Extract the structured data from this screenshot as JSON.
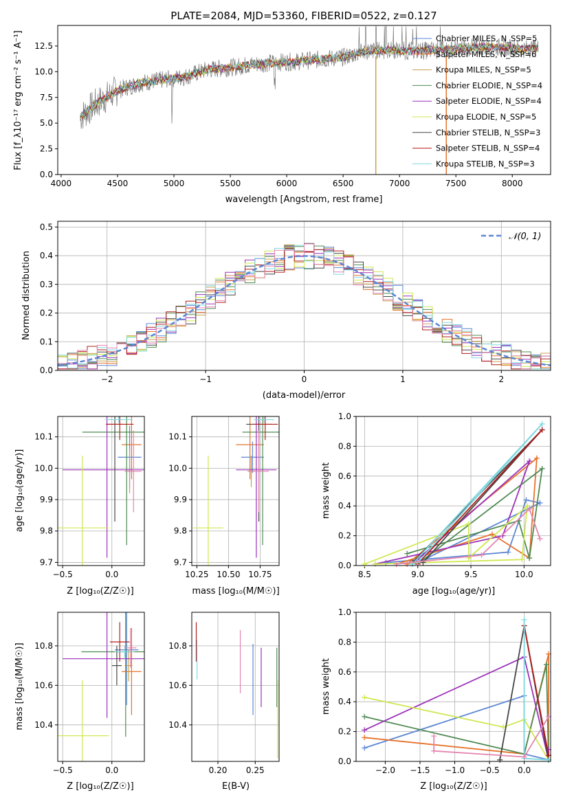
{
  "colors": {
    "chabrier_miles": "#5b86d4",
    "salpeter_miles": "#e6722a",
    "kroupa_miles": "#c8a050",
    "chabrier_elodie": "#4f8a52",
    "salpeter_elodie": "#9b30b8",
    "kroupa_elodie": "#cfe84f",
    "chabrier_stelib": "#454545",
    "salpeter_stelib": "#b31b1b",
    "kroupa_stelib": "#7fd8e0",
    "pink": "#e484b0",
    "gray": "#777777",
    "normal": "#5b86d4",
    "grid": "#b0b0b0"
  },
  "chart_data": [
    {
      "id": "spectrum",
      "type": "line",
      "title": "PLATE=2084, MJD=53360, FIBERID=0522, z=0.127",
      "xlabel": "wavelength [Angstrom, rest frame]",
      "ylabel": "Flux [f_λ10⁻¹⁷ erg cm⁻² s⁻¹ A⁻¹]",
      "xlim": [
        3970,
        8340
      ],
      "ylim": [
        0,
        14.5
      ],
      "xticks": [
        4000,
        4500,
        5000,
        5500,
        6000,
        6500,
        7000,
        7500,
        8000
      ],
      "yticks": [
        0.0,
        2.5,
        5.0,
        7.5,
        10.0,
        12.5
      ],
      "continuum": [
        [
          4170,
          5.6
        ],
        [
          4300,
          6.8
        ],
        [
          4500,
          8.2
        ],
        [
          4700,
          8.9
        ],
        [
          4900,
          9.2
        ],
        [
          5100,
          9.5
        ],
        [
          5300,
          10.2
        ],
        [
          5500,
          10.4
        ],
        [
          5700,
          10.7
        ],
        [
          5900,
          10.9
        ],
        [
          6100,
          11.0
        ],
        [
          6300,
          11.2
        ],
        [
          6500,
          11.4
        ],
        [
          6700,
          12.0
        ],
        [
          6900,
          12.1
        ],
        [
          7100,
          12.0
        ],
        [
          7300,
          12.1
        ],
        [
          7500,
          12.2
        ],
        [
          7700,
          12.4
        ],
        [
          7900,
          12.4
        ],
        [
          8100,
          12.2
        ],
        [
          8200,
          12.3
        ]
      ],
      "legend": [
        "Chabrier MILES, N_SSP=5",
        "Salpeter MILES, N_SSP=6",
        "Kroupa MILES, N_SSP=5",
        "Chabrier ELODIE, N_SSP=4",
        "Salpeter ELODIE, N_SSP=4",
        "Kroupa ELODIE, N_SSP=5",
        "Chabrier STELIB, N_SSP=3",
        "Salpeter STELIB, N_SSP=4",
        "Kroupa STELIB, N_SSP=3"
      ],
      "legend_placement": "right",
      "grid": false
    },
    {
      "id": "residuals",
      "type": "line",
      "xlabel": "(data-model)/error",
      "ylabel": "Normed distribution",
      "xlim": [
        -2.5,
        2.5
      ],
      "ylim": [
        0,
        0.52
      ],
      "xticks": [
        -2,
        -1,
        0,
        1,
        2
      ],
      "yticks": [
        0.0,
        0.1,
        0.2,
        0.3,
        0.4,
        0.5
      ],
      "legend": [
        "𝒩(0, 1)"
      ],
      "legend_placement": "top-right",
      "grid": true
    },
    {
      "id": "age-vs-Z",
      "type": "scatter",
      "xlabel": "Z [log₁₀(Z/Z☉)]",
      "ylabel": "age  [log₁₀(age/yr)]",
      "xlim": [
        -0.55,
        0.33
      ],
      "ylim": [
        9.69,
        10.165
      ],
      "xticks": [
        -0.5,
        0.0
      ],
      "yticks": [
        9.7,
        9.8,
        9.9,
        10.0,
        10.1
      ],
      "grid": true,
      "points": [
        {
          "c": "chabrier_miles",
          "x": 0.18,
          "y": 10.035,
          "ex": 0.12,
          "ey": 0.1
        },
        {
          "c": "salpeter_miles",
          "x": 0.2,
          "y": 10.075,
          "ex": 0.1,
          "ey": 0.11
        },
        {
          "c": "kroupa_miles",
          "x": 0.18,
          "y": 9.99,
          "ex": 0.05,
          "ey": 0.07
        },
        {
          "c": "chabrier_elodie",
          "x": 0.15,
          "y": 10.115,
          "ex": 0.45,
          "ey": 0.36
        },
        {
          "c": "salpeter_elodie",
          "x": -0.05,
          "y": 9.995,
          "ex": 0.45,
          "ey": 0.28
        },
        {
          "c": "kroupa_elodie",
          "x": -0.3,
          "y": 9.81,
          "ex": 0.27,
          "ey": 0.23
        },
        {
          "c": "chabrier_stelib",
          "x": 0.03,
          "y": 10.14,
          "ex": 0.08,
          "ey": 0.31
        },
        {
          "c": "salpeter_stelib",
          "x": 0.08,
          "y": 10.14,
          "ex": 0.14,
          "ey": 0.05
        },
        {
          "c": "kroupa_stelib",
          "x": 0.07,
          "y": 10.155,
          "ex": 0.14,
          "ey": 0.01
        },
        {
          "c": "pink",
          "x": 0.22,
          "y": 9.99,
          "ex": 0.08,
          "ey": 0.13
        }
      ]
    },
    {
      "id": "age-vs-mass",
      "type": "scatter",
      "xlabel": "mass [log₁₀(M/M☉)]",
      "ylabel": "",
      "xlim": [
        10.21,
        10.9
      ],
      "ylim": [
        9.69,
        10.165
      ],
      "xticks": [
        10.25,
        10.5,
        10.75
      ],
      "yticks": [
        9.7,
        9.8,
        9.9,
        10.0,
        10.1
      ],
      "grid": true,
      "points": [
        {
          "c": "chabrier_miles",
          "x": 10.69,
          "y": 10.035,
          "ex": 0.09,
          "ey": 0.05
        },
        {
          "c": "salpeter_miles",
          "x": 10.67,
          "y": 10.075,
          "ex": 0.11,
          "ey": 0.11
        },
        {
          "c": "kroupa_miles",
          "x": 10.68,
          "y": 9.99,
          "ex": 0.03,
          "ey": 0.05
        },
        {
          "c": "chabrier_elodie",
          "x": 10.77,
          "y": 10.115,
          "ex": 0.16,
          "ey": 0.36
        },
        {
          "c": "salpeter_elodie",
          "x": 10.72,
          "y": 9.995,
          "ex": 0.16,
          "ey": 0.28
        },
        {
          "c": "kroupa_elodie",
          "x": 10.34,
          "y": 9.81,
          "ex": 0.12,
          "ey": 0.23
        },
        {
          "c": "chabrier_stelib",
          "x": 10.74,
          "y": 10.14,
          "ex": 0.1,
          "ey": 0.31
        },
        {
          "c": "salpeter_stelib",
          "x": 10.79,
          "y": 10.14,
          "ex": 0.1,
          "ey": 0.05
        },
        {
          "c": "kroupa_stelib",
          "x": 10.78,
          "y": 10.155,
          "ex": 0.08,
          "ey": 0.01
        },
        {
          "c": "pink",
          "x": 10.74,
          "y": 9.99,
          "ex": 0.08,
          "ey": 0.13
        }
      ]
    },
    {
      "id": "weight-vs-age",
      "type": "line",
      "xlabel": "age  [log₁₀(age/yr)]",
      "ylabel": "mass weight",
      "xlim": [
        8.42,
        10.25
      ],
      "ylim": [
        0,
        1.0
      ],
      "xticks": [
        8.5,
        9.0,
        9.5,
        10.0
      ],
      "yticks": [
        0.0,
        0.2,
        0.4,
        0.6,
        0.8,
        1.0
      ],
      "grid": true,
      "series": [
        {
          "c": "chabrier_miles",
          "x": [
            8.7,
            9.85,
            10.02,
            10.15,
            9.0
          ],
          "y": [
            0.02,
            0.09,
            0.44,
            0.42,
            0.02
          ]
        },
        {
          "c": "salpeter_miles",
          "x": [
            8.8,
            9.7,
            10.05,
            10.12,
            8.9
          ],
          "y": [
            0.01,
            0.21,
            0.05,
            0.72,
            0.01
          ]
        },
        {
          "c": "chabrier_elodie",
          "x": [
            8.9,
            9.95,
            10.05,
            10.17,
            9.0
          ],
          "y": [
            0.08,
            0.3,
            0.05,
            0.65,
            0.01
          ]
        },
        {
          "c": "salpeter_elodie",
          "x": [
            8.6,
            9.8,
            10.05,
            8.95
          ],
          "y": [
            0.01,
            0.2,
            0.7,
            0.01
          ]
        },
        {
          "c": "kroupa_elodie",
          "x": [
            8.5,
            9.48,
            9.48,
            10.03,
            9.98,
            8.6
          ],
          "y": [
            0.01,
            0.28,
            0.05,
            0.4,
            0.04,
            0.01
          ]
        },
        {
          "c": "chabrier_stelib",
          "x": [
            8.95,
            10.17,
            9.05
          ],
          "y": [
            0.02,
            0.91,
            0.02
          ]
        },
        {
          "c": "salpeter_stelib",
          "x": [
            9.0,
            10.17
          ],
          "y": [
            0.01,
            0.91
          ]
        },
        {
          "c": "kroupa_stelib",
          "x": [
            8.95,
            10.17,
            9.0
          ],
          "y": [
            0.01,
            0.95,
            0.02
          ]
        },
        {
          "c": "pink",
          "x": [
            8.8,
            9.6,
            10.05,
            10.15
          ],
          "y": [
            0.01,
            0.07,
            0.38,
            0.18
          ]
        }
      ]
    },
    {
      "id": "mass-vs-Z",
      "type": "scatter",
      "xlabel": "Z [log₁₀(Z/Z☉)]",
      "ylabel": "mass [log₁₀(M/M☉)]",
      "xlim": [
        -0.55,
        0.33
      ],
      "ylim": [
        10.215,
        10.97
      ],
      "xticks": [
        -0.5,
        0.0
      ],
      "yticks": [
        10.4,
        10.6,
        10.8
      ],
      "grid": true,
      "points": [
        {
          "c": "chabrier_miles",
          "x": 0.15,
          "y": 10.78,
          "ex": 0.12,
          "ey": 0.28
        },
        {
          "c": "salpeter_miles",
          "x": 0.2,
          "y": 10.67,
          "ex": 0.1,
          "ey": 0.22
        },
        {
          "c": "kroupa_miles",
          "x": 0.17,
          "y": 10.7,
          "ex": 0.04,
          "ey": 0.08
        },
        {
          "c": "chabrier_elodie",
          "x": 0.14,
          "y": 10.77,
          "ex": 0.45,
          "ey": 0.43
        },
        {
          "c": "salpeter_elodie",
          "x": -0.05,
          "y": 10.735,
          "ex": 0.45,
          "ey": 0.3
        },
        {
          "c": "kroupa_elodie",
          "x": -0.3,
          "y": 10.345,
          "ex": 0.27,
          "ey": 0.28
        },
        {
          "c": "chabrier_stelib",
          "x": 0.05,
          "y": 10.7,
          "ex": 0.05,
          "ey": 0.1
        },
        {
          "c": "salpeter_stelib",
          "x": 0.08,
          "y": 10.82,
          "ex": 0.1,
          "ey": 0.1
        },
        {
          "c": "kroupa_stelib",
          "x": 0.13,
          "y": 10.77,
          "ex": 0.1,
          "ey": 0.03
        },
        {
          "c": "pink",
          "x": 0.19,
          "y": 10.79,
          "ex": 0.06,
          "ey": 0.1
        }
      ]
    },
    {
      "id": "mass-vs-EBV",
      "type": "scatter",
      "xlabel": "E(B-V)",
      "ylabel": "",
      "xlim": [
        0.165,
        0.282
      ],
      "ylim": [
        10.215,
        10.97
      ],
      "xticks": [
        0.2,
        0.25
      ],
      "yticks": [
        10.4,
        10.6,
        10.8
      ],
      "grid": true,
      "points": [
        {
          "c": "salpeter_stelib",
          "x": 0.171,
          "y": 10.82,
          "ex": 0,
          "ey": 0.1
        },
        {
          "c": "kroupa_stelib",
          "x": 0.172,
          "y": 10.73,
          "ex": 0,
          "ey": 0.1
        },
        {
          "c": "pink",
          "x": 0.23,
          "y": 10.72,
          "ex": 0,
          "ey": 0.16
        },
        {
          "c": "chabrier_miles",
          "x": 0.247,
          "y": 10.63,
          "ex": 0,
          "ey": 0.18
        },
        {
          "c": "salpeter_elodie",
          "x": 0.258,
          "y": 10.64,
          "ex": 0,
          "ey": 0.15
        },
        {
          "c": "chabrier_elodie",
          "x": 0.279,
          "y": 10.64,
          "ex": 0,
          "ey": 0.15
        },
        {
          "c": "kroupa_elodie",
          "x": 0.28,
          "y": 10.43,
          "ex": 0,
          "ey": 0.2
        }
      ]
    },
    {
      "id": "weight-vs-Z",
      "type": "line",
      "xlabel": "Z [log₁₀(Z/Z☉)]",
      "ylabel": "mass weight",
      "xlim": [
        -2.42,
        0.38
      ],
      "ylim": [
        0,
        1.0
      ],
      "xticks": [
        -2.0,
        -1.5,
        -1.0,
        -0.5,
        0.0
      ],
      "yticks": [
        0.0,
        0.2,
        0.4,
        0.6,
        0.8,
        1.0
      ],
      "grid": true,
      "series": [
        {
          "c": "chabrier_miles",
          "x": [
            -2.3,
            0.0,
            0.0,
            0.35
          ],
          "y": [
            0.09,
            0.44,
            0.05,
            0.01
          ]
        },
        {
          "c": "salpeter_miles",
          "x": [
            -2.3,
            0.0,
            0.35,
            0.35
          ],
          "y": [
            0.16,
            0.05,
            0.72,
            0.01
          ]
        },
        {
          "c": "chabrier_elodie",
          "x": [
            -2.3,
            0.0,
            0.32,
            0.35
          ],
          "y": [
            0.3,
            0.05,
            0.65,
            0.01
          ]
        },
        {
          "c": "salpeter_elodie",
          "x": [
            -2.3,
            0.0,
            0.35,
            0.35
          ],
          "y": [
            0.21,
            0.7,
            0.01,
            0.08
          ]
        },
        {
          "c": "kroupa_elodie",
          "x": [
            -2.3,
            -0.3,
            0.0,
            0.35
          ],
          "y": [
            0.43,
            0.23,
            0.28,
            0.01
          ]
        },
        {
          "c": "chabrier_stelib",
          "x": [
            -0.35,
            0.0,
            0.35
          ],
          "y": [
            0.01,
            0.91,
            0.01
          ]
        },
        {
          "c": "salpeter_stelib",
          "x": [
            0.0,
            0.35
          ],
          "y": [
            0.91,
            0.04
          ]
        },
        {
          "c": "kroupa_stelib",
          "x": [
            0.0,
            0.0,
            0.35
          ],
          "y": [
            0.95,
            0.02,
            0.01
          ]
        },
        {
          "c": "pink",
          "x": [
            -1.3,
            -1.3,
            0.0,
            0.35
          ],
          "y": [
            0.17,
            0.07,
            0.03,
            0.3
          ]
        }
      ]
    }
  ]
}
